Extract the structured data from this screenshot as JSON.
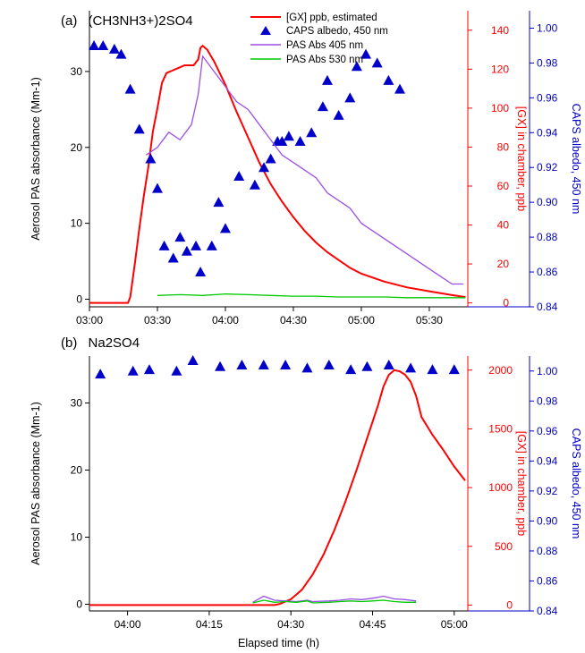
{
  "chart_data": [
    {
      "panel": "(a)",
      "title": "(CH3NH3+)2SO4",
      "type": "line",
      "xlabel": "",
      "x_ticks": [
        "03:00",
        "03:30",
        "04:00",
        "04:30",
        "05:00",
        "05:30"
      ],
      "x_tick_minutes": [
        0,
        30,
        60,
        90,
        120,
        150
      ],
      "xlim_minutes": [
        0,
        167
      ],
      "ylabel_left": "Aerosol PAS absorbance (Mm-1)",
      "ylim_left": [
        -1,
        38
      ],
      "yticks_left": [
        0,
        10,
        20,
        30
      ],
      "ylabel_right1": "[GX] in chamber, ppb",
      "ylim_right1": [
        -2,
        150
      ],
      "yticks_right1": [
        0,
        20,
        40,
        60,
        80,
        100,
        120,
        140
      ],
      "ylabel_right2": "CAPS albedo, 450 nm",
      "ylim_right2": [
        0.84,
        1.01
      ],
      "yticks_right2": [
        "0.84",
        "0.86",
        "0.88",
        "0.90",
        "0.92",
        "0.94",
        "0.96",
        "0.98",
        "1.00"
      ],
      "legend": [
        "[GX] ppb, estimated",
        "CAPS albedo, 450 nm",
        "PAS Abs 405 nm",
        "PAS Abs 530 nm"
      ],
      "legend_position": "top-center",
      "series": [
        {
          "name": "[GX] ppb, estimated",
          "axis": "right1",
          "color": "#ff0000",
          "x": [
            0,
            17,
            18,
            20,
            22,
            24,
            26,
            28,
            30,
            32,
            34,
            36,
            38,
            40,
            42,
            44,
            46,
            48,
            49,
            50,
            52,
            55,
            60,
            65,
            70,
            75,
            80,
            85,
            90,
            95,
            100,
            105,
            110,
            115,
            120,
            130,
            140,
            150,
            160,
            166
          ],
          "y": [
            0,
            0,
            3,
            20,
            38,
            55,
            70,
            88,
            100,
            113,
            118,
            119,
            120,
            121,
            122,
            122,
            122,
            125,
            131,
            132,
            130,
            124,
            112,
            98,
            85,
            72,
            61,
            52,
            44,
            37,
            31,
            26,
            22,
            18,
            15,
            11,
            8,
            6,
            4,
            3
          ]
        },
        {
          "name": "CAPS albedo, 450 nm",
          "axis": "right2",
          "color": "#0000c8",
          "type": "scatter",
          "x": [
            2,
            6,
            11,
            14,
            18,
            22,
            27,
            30,
            33,
            37,
            40,
            43,
            47,
            49,
            54,
            57,
            60,
            66,
            73,
            77,
            80,
            83,
            85,
            88,
            93,
            98,
            103,
            105,
            110,
            115,
            118,
            122,
            127,
            132,
            137
          ],
          "y": [
            0.99,
            0.99,
            0.988,
            0.985,
            0.965,
            0.942,
            0.925,
            0.908,
            0.875,
            0.868,
            0.88,
            0.872,
            0.875,
            0.86,
            0.875,
            0.9,
            0.885,
            0.915,
            0.91,
            0.92,
            0.925,
            0.935,
            0.935,
            0.938,
            0.935,
            0.94,
            0.955,
            0.97,
            0.95,
            0.96,
            0.978,
            0.985,
            0.98,
            0.97,
            0.965
          ]
        },
        {
          "name": "PAS Abs 405 nm",
          "axis": "left",
          "color": "#9b4fe6",
          "x": [
            25,
            30,
            35,
            40,
            45,
            48,
            50,
            55,
            60,
            65,
            70,
            75,
            80,
            85,
            90,
            95,
            100,
            105,
            110,
            115,
            120,
            125,
            130,
            135,
            140,
            145,
            150,
            155,
            160,
            165
          ],
          "y": [
            19,
            20,
            22,
            21,
            23,
            27,
            32,
            30,
            28,
            26,
            25,
            23,
            21,
            19,
            18,
            17,
            16,
            14,
            13,
            12,
            10,
            9,
            8,
            7,
            6,
            5,
            4,
            3,
            2,
            2
          ]
        },
        {
          "name": "PAS Abs 530 nm",
          "axis": "left",
          "color": "#00c800",
          "x": [
            30,
            40,
            50,
            60,
            70,
            80,
            90,
            100,
            110,
            120,
            130,
            140,
            150,
            160,
            166
          ],
          "y": [
            0.5,
            0.6,
            0.5,
            0.7,
            0.6,
            0.5,
            0.4,
            0.4,
            0.3,
            0.3,
            0.3,
            0.2,
            0.2,
            0.2,
            0.2
          ]
        }
      ]
    },
    {
      "panel": "(b)",
      "title": "Na2SO4",
      "type": "line",
      "xlabel": "Elapsed time (h)",
      "x_ticks": [
        "04:00",
        "04:15",
        "04:30",
        "04:45",
        "05:00"
      ],
      "x_tick_minutes": [
        60,
        75,
        90,
        105,
        120
      ],
      "xlim_minutes": [
        53,
        122.5
      ],
      "ylabel_left": "Aerosol PAS absorbance (Mm-1)",
      "ylim_left": [
        -1,
        37
      ],
      "yticks_left": [
        0,
        10,
        20,
        30
      ],
      "ylabel_right1": "[GX] in chamber, ppb",
      "ylim_right1": [
        -50,
        2120
      ],
      "yticks_right1": [
        0,
        500,
        1000,
        1500,
        2000
      ],
      "ylabel_right2": "CAPS albedo, 450 nm",
      "ylim_right2": [
        0.84,
        1.01
      ],
      "yticks_right2": [
        "0.84",
        "0.86",
        "0.88",
        "0.90",
        "0.92",
        "0.94",
        "0.96",
        "0.98",
        "1.00"
      ],
      "series": [
        {
          "name": "[GX] ppb, estimated",
          "axis": "right1",
          "color": "#ff0000",
          "x": [
            53,
            87,
            88,
            90,
            92,
            94,
            96,
            98,
            100,
            102,
            104,
            106,
            107,
            108,
            109,
            110,
            111,
            112,
            113,
            114,
            116,
            118,
            120,
            122
          ],
          "y": [
            0,
            0,
            10,
            50,
            130,
            260,
            430,
            640,
            880,
            1140,
            1420,
            1700,
            1860,
            1960,
            2000,
            1990,
            1960,
            1900,
            1780,
            1600,
            1450,
            1320,
            1180,
            1060
          ]
        },
        {
          "name": "CAPS albedo, 450 nm",
          "axis": "right2",
          "color": "#0000c8",
          "type": "scatter",
          "x": [
            55,
            61,
            64,
            69,
            72,
            77,
            81,
            85,
            89,
            93,
            97,
            101,
            104,
            108,
            112,
            116,
            120
          ],
          "y": [
            0.998,
            1.0,
            1.001,
            1.0,
            1.007,
            1.003,
            1.004,
            1.004,
            1.004,
            1.002,
            1.004,
            1.001,
            1.003,
            1.004,
            1.002,
            1.001,
            1.001
          ]
        },
        {
          "name": "PAS Abs 405 nm",
          "axis": "left",
          "color": "#9b4fe6",
          "x": [
            83,
            85,
            87,
            89,
            91,
            93,
            94,
            97,
            99,
            101,
            103,
            105,
            107,
            109,
            111,
            113
          ],
          "y": [
            0.3,
            1.2,
            0.6,
            0.5,
            0.4,
            0.6,
            0.4,
            0.5,
            0.6,
            0.8,
            0.7,
            0.9,
            1.2,
            0.8,
            0.7,
            0.5
          ]
        },
        {
          "name": "PAS Abs 530 nm",
          "axis": "left",
          "color": "#00c800",
          "x": [
            83,
            85,
            87,
            89,
            91,
            93,
            94,
            97,
            99,
            101,
            103,
            105,
            107,
            109,
            111,
            113
          ],
          "y": [
            0.2,
            0.6,
            0.3,
            0.4,
            0.3,
            0.5,
            0.2,
            0.3,
            0.4,
            0.5,
            0.4,
            0.5,
            0.6,
            0.4,
            0.3,
            0.3
          ]
        }
      ]
    }
  ]
}
